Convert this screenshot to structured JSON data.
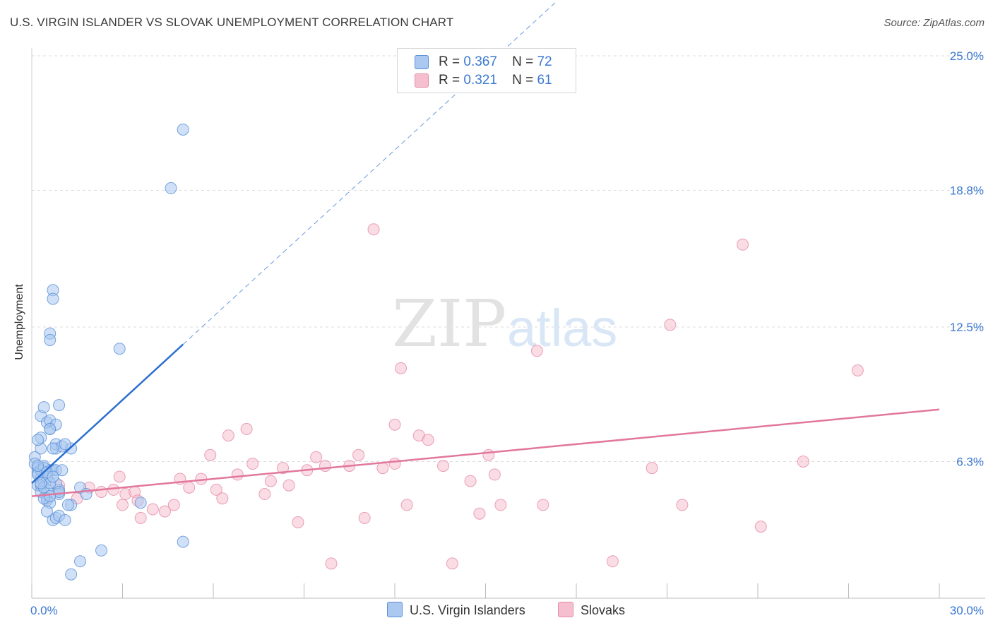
{
  "title": "U.S. VIRGIN ISLANDER VS SLOVAK UNEMPLOYMENT CORRELATION CHART",
  "source": "Source: ZipAtlas.com",
  "watermark": {
    "zip": "ZIP",
    "atlas": "atlas"
  },
  "legend": {
    "rows": [
      {
        "r_label": "R =",
        "r_value": "0.367",
        "n_label": "N =",
        "n_value": "72"
      },
      {
        "r_label": "R =",
        "r_value": "0.321",
        "n_label": "N =",
        "n_value": "61"
      }
    ]
  },
  "colors": {
    "blue_fill": "#aac8f0",
    "blue_stroke": "#5a8fd6",
    "blue_line": "#2a6fd0",
    "pink_fill": "#f6bfd0",
    "pink_stroke": "#e58aa8",
    "pink_line": "#e2779c",
    "tick_text": "#3a78d0",
    "grid": "#dcdcdc"
  },
  "chart_data": {
    "type": "scatter",
    "title": "U.S. VIRGIN ISLANDER VS SLOVAK UNEMPLOYMENT CORRELATION CHART",
    "xlabel": "",
    "ylabel": "Unemployment",
    "xlim": [
      0,
      30
    ],
    "ylim": [
      0,
      25
    ],
    "x_tick_labels": [
      {
        "value": 0,
        "label": "0.0%"
      },
      {
        "value": 30,
        "label": "30.0%"
      }
    ],
    "y_tick_labels": [
      {
        "value": 6.3,
        "label": "6.3%"
      },
      {
        "value": 12.5,
        "label": "12.5%"
      },
      {
        "value": 18.8,
        "label": "18.8%"
      },
      {
        "value": 25.0,
        "label": "25.0%"
      }
    ],
    "series": [
      {
        "name": "U.S. Virgin Islanders",
        "trend": {
          "x0": 0.0,
          "y0": 5.3,
          "x1": 5.0,
          "y1": 11.7,
          "dashed_to_x": 17.3
        },
        "points": [
          [
            0.1,
            6.5
          ],
          [
            0.1,
            6.2
          ],
          [
            0.2,
            6.0
          ],
          [
            0.2,
            5.8
          ],
          [
            0.3,
            5.5
          ],
          [
            0.2,
            5.2
          ],
          [
            0.4,
            6.1
          ],
          [
            0.3,
            5.9
          ],
          [
            0.5,
            5.0
          ],
          [
            0.4,
            5.4
          ],
          [
            0.6,
            5.9
          ],
          [
            0.3,
            6.9
          ],
          [
            0.3,
            7.4
          ],
          [
            0.3,
            8.4
          ],
          [
            0.4,
            8.8
          ],
          [
            0.6,
            7.8
          ],
          [
            0.5,
            8.1
          ],
          [
            0.6,
            8.2
          ],
          [
            0.8,
            8.0
          ],
          [
            0.9,
            8.9
          ],
          [
            0.6,
            7.8
          ],
          [
            0.8,
            6.9
          ],
          [
            0.8,
            7.1
          ],
          [
            1.0,
            7.0
          ],
          [
            0.7,
            6.9
          ],
          [
            0.7,
            5.9
          ],
          [
            0.8,
            5.9
          ],
          [
            0.3,
            5.2
          ],
          [
            0.5,
            4.6
          ],
          [
            0.5,
            4.5
          ],
          [
            0.6,
            4.4
          ],
          [
            0.9,
            5.0
          ],
          [
            0.9,
            4.8
          ],
          [
            1.3,
            6.9
          ],
          [
            0.7,
            3.6
          ],
          [
            0.8,
            3.7
          ],
          [
            0.9,
            3.8
          ],
          [
            1.1,
            3.6
          ],
          [
            1.3,
            4.3
          ],
          [
            1.6,
            5.1
          ],
          [
            0.5,
            4.0
          ],
          [
            0.6,
            12.2
          ],
          [
            0.6,
            11.9
          ],
          [
            0.7,
            14.2
          ],
          [
            0.7,
            13.8
          ],
          [
            2.9,
            11.5
          ],
          [
            1.6,
            1.7
          ],
          [
            1.3,
            1.1
          ],
          [
            2.3,
            2.2
          ],
          [
            5.0,
            2.6
          ],
          [
            3.6,
            4.4
          ],
          [
            4.6,
            18.9
          ],
          [
            5.0,
            21.6
          ],
          [
            1.1,
            7.1
          ],
          [
            0.2,
            7.3
          ],
          [
            0.4,
            6.0
          ],
          [
            0.5,
            5.6
          ],
          [
            0.8,
            5.3
          ],
          [
            1.2,
            4.3
          ],
          [
            0.3,
            4.9
          ],
          [
            0.4,
            5.1
          ],
          [
            0.6,
            5.3
          ],
          [
            0.2,
            5.7
          ],
          [
            0.9,
            4.9
          ],
          [
            1.8,
            4.8
          ],
          [
            0.4,
            4.6
          ],
          [
            0.3,
            5.3
          ],
          [
            0.6,
            4.7
          ],
          [
            0.5,
            5.8
          ],
          [
            1.0,
            5.9
          ],
          [
            0.2,
            6.1
          ],
          [
            0.7,
            5.6
          ]
        ]
      },
      {
        "name": "Slovaks",
        "trend": {
          "x0": 0.0,
          "y0": 4.7,
          "x1": 30.0,
          "y1": 8.7
        },
        "points": [
          [
            0.9,
            5.2
          ],
          [
            1.9,
            5.1
          ],
          [
            2.7,
            5.0
          ],
          [
            3.1,
            4.8
          ],
          [
            2.9,
            5.6
          ],
          [
            3.4,
            4.9
          ],
          [
            3.6,
            3.7
          ],
          [
            3.5,
            4.5
          ],
          [
            4.0,
            4.1
          ],
          [
            4.7,
            4.3
          ],
          [
            4.9,
            5.5
          ],
          [
            5.2,
            5.1
          ],
          [
            5.6,
            5.5
          ],
          [
            5.9,
            6.6
          ],
          [
            6.1,
            5.0
          ],
          [
            6.5,
            7.5
          ],
          [
            6.8,
            5.7
          ],
          [
            7.1,
            7.8
          ],
          [
            7.3,
            6.2
          ],
          [
            7.7,
            4.8
          ],
          [
            7.9,
            5.4
          ],
          [
            8.3,
            6.0
          ],
          [
            8.5,
            5.2
          ],
          [
            8.8,
            3.5
          ],
          [
            9.4,
            6.5
          ],
          [
            9.7,
            6.1
          ],
          [
            9.9,
            1.6
          ],
          [
            10.5,
            6.1
          ],
          [
            10.8,
            6.6
          ],
          [
            11.0,
            3.7
          ],
          [
            11.3,
            17.0
          ],
          [
            11.6,
            6.0
          ],
          [
            12.0,
            8.0
          ],
          [
            12.2,
            10.6
          ],
          [
            12.4,
            4.3
          ],
          [
            12.8,
            7.5
          ],
          [
            13.1,
            7.3
          ],
          [
            13.6,
            6.1
          ],
          [
            13.9,
            1.6
          ],
          [
            14.5,
            5.4
          ],
          [
            14.8,
            3.9
          ],
          [
            15.1,
            6.6
          ],
          [
            15.3,
            5.7
          ],
          [
            15.5,
            4.3
          ],
          [
            16.7,
            11.4
          ],
          [
            16.9,
            4.3
          ],
          [
            19.2,
            1.7
          ],
          [
            20.5,
            6.0
          ],
          [
            21.1,
            12.6
          ],
          [
            21.5,
            4.3
          ],
          [
            23.5,
            16.3
          ],
          [
            24.1,
            3.3
          ],
          [
            25.5,
            6.3
          ],
          [
            27.3,
            10.5
          ],
          [
            12.0,
            6.2
          ],
          [
            9.1,
            5.9
          ],
          [
            3.0,
            4.3
          ],
          [
            2.3,
            4.9
          ],
          [
            6.3,
            4.6
          ],
          [
            1.5,
            4.6
          ],
          [
            4.4,
            4.0
          ]
        ]
      }
    ]
  },
  "bottom_legend": [
    {
      "label": "U.S. Virgin Islanders"
    },
    {
      "label": "Slovaks"
    }
  ]
}
